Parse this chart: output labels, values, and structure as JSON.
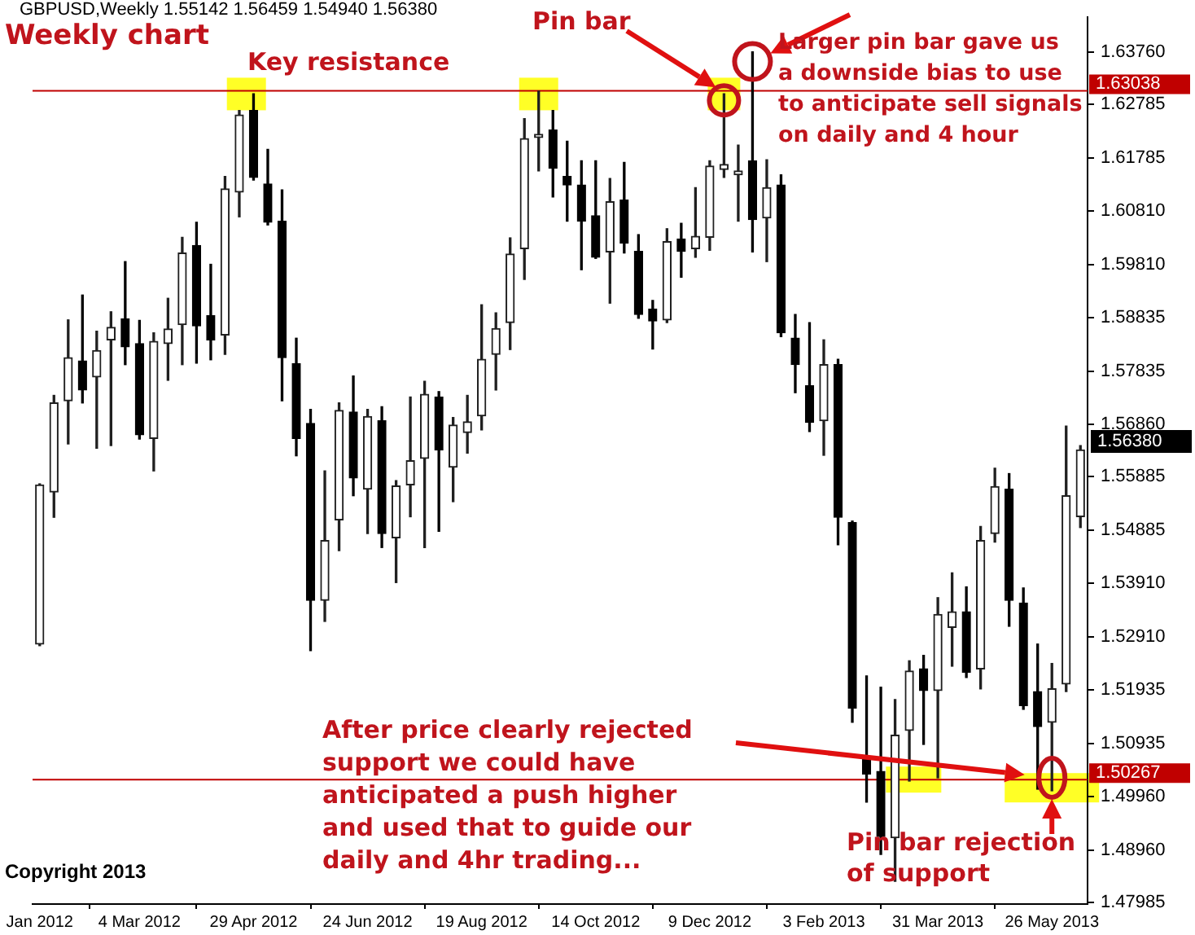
{
  "chart_data": {
    "type": "candlestick",
    "title": "Weekly chart",
    "subtitle": "GBPUSD,Weekly  1.55142 1.56459 1.54940 1.56380",
    "categories": [
      "Jan 2012",
      null,
      null,
      null,
      null,
      null,
      null,
      "4 Mar 2012",
      null,
      null,
      null,
      null,
      null,
      null,
      null,
      "29 Apr 2012",
      null,
      null,
      null,
      null,
      null,
      null,
      null,
      "24 Jun 2012",
      null,
      null,
      null,
      null,
      null,
      null,
      null,
      "19 Aug 2012",
      null,
      null,
      null,
      null,
      null,
      null,
      null,
      "14 Oct 2012",
      null,
      null,
      null,
      null,
      null,
      null,
      null,
      "9 Dec 2012",
      null,
      null,
      null,
      null,
      null,
      null,
      null,
      "3 Feb 2013",
      null,
      null,
      null,
      null,
      null,
      null,
      null,
      "31 Mar 2013",
      null,
      null,
      null,
      null,
      null,
      null,
      null,
      "26 May 2013",
      null,
      null
    ],
    "ohlc": [
      [
        1.5278,
        1.5575,
        1.5275,
        1.5573
      ],
      [
        1.556,
        1.5739,
        1.5513,
        1.5725
      ],
      [
        1.5729,
        1.5879,
        1.5649,
        1.5809
      ],
      [
        1.5803,
        1.5925,
        1.5725,
        1.5749
      ],
      [
        1.5773,
        1.5858,
        1.5641,
        1.5822
      ],
      [
        1.5842,
        1.5894,
        1.5646,
        1.5865
      ],
      [
        1.5881,
        1.5987,
        1.5796,
        1.5829
      ],
      [
        1.5835,
        1.5878,
        1.5658,
        1.5666
      ],
      [
        1.5659,
        1.5855,
        1.5599,
        1.5839
      ],
      [
        1.5835,
        1.5919,
        1.5767,
        1.5862
      ],
      [
        1.587,
        1.6032,
        1.5796,
        1.6003
      ],
      [
        1.6017,
        1.606,
        1.5799,
        1.5868
      ],
      [
        1.5887,
        1.5982,
        1.5805,
        1.5842
      ],
      [
        1.5851,
        1.6145,
        1.5815,
        1.6122
      ],
      [
        1.6116,
        1.6267,
        1.607,
        1.6259
      ],
      [
        1.6267,
        1.6298,
        1.6138,
        1.6143
      ],
      [
        1.6131,
        1.6195,
        1.6055,
        1.606
      ],
      [
        1.6062,
        1.612,
        1.5729,
        1.5809
      ],
      [
        1.5798,
        1.5845,
        1.5627,
        1.5659
      ],
      [
        1.5687,
        1.5713,
        1.5266,
        1.5359
      ],
      [
        1.5359,
        1.5599,
        1.532,
        1.547
      ],
      [
        1.5508,
        1.5725,
        1.5451,
        1.5711
      ],
      [
        1.5708,
        1.5775,
        1.5553,
        1.5586
      ],
      [
        1.5565,
        1.5713,
        1.5483,
        1.57
      ],
      [
        1.5692,
        1.5718,
        1.5457,
        1.5483
      ],
      [
        1.5475,
        1.5581,
        1.5392,
        1.5571
      ],
      [
        1.5573,
        1.5736,
        1.5514,
        1.5618
      ],
      [
        1.5622,
        1.5765,
        1.5457,
        1.5741
      ],
      [
        1.5736,
        1.5746,
        1.5487,
        1.5638
      ],
      [
        1.5606,
        1.5698,
        1.5542,
        1.5684
      ],
      [
        1.567,
        1.5739,
        1.5632,
        1.569
      ],
      [
        1.5701,
        1.5907,
        1.5675,
        1.5806
      ],
      [
        1.5815,
        1.5892,
        1.5749,
        1.5863
      ],
      [
        1.5874,
        1.6031,
        1.5824,
        1.6001
      ],
      [
        1.6011,
        1.6252,
        1.5954,
        1.6215
      ],
      [
        1.6217,
        1.6303,
        1.6155,
        1.6223
      ],
      [
        1.6231,
        1.6267,
        1.6107,
        1.616
      ],
      [
        1.6145,
        1.621,
        1.6062,
        1.6129
      ],
      [
        1.6129,
        1.6174,
        1.5972,
        1.6062
      ],
      [
        1.6072,
        1.6174,
        1.5993,
        1.5995
      ],
      [
        1.6005,
        1.6141,
        1.591,
        1.6098
      ],
      [
        1.6101,
        1.6171,
        1.6003,
        1.6021
      ],
      [
        1.6006,
        1.6037,
        1.5882,
        1.5889
      ],
      [
        1.5899,
        1.5915,
        1.5825,
        1.5877
      ],
      [
        1.5879,
        1.6048,
        1.5874,
        1.6024
      ],
      [
        1.6029,
        1.6058,
        1.5958,
        1.6006
      ],
      [
        1.6011,
        1.6124,
        1.5995,
        1.6034
      ],
      [
        1.6032,
        1.6174,
        1.6008,
        1.6164
      ],
      [
        1.6158,
        1.6298,
        1.6143,
        1.6167
      ],
      [
        1.6148,
        1.6203,
        1.6062,
        1.6155
      ],
      [
        1.6174,
        1.6376,
        1.6005,
        1.6065
      ],
      [
        1.6068,
        1.6176,
        1.5987,
        1.6124
      ],
      [
        1.6129,
        1.6148,
        1.5848,
        1.5855
      ],
      [
        1.5845,
        1.5889,
        1.5744,
        1.5796
      ],
      [
        1.5757,
        1.5874,
        1.5672,
        1.5689
      ],
      [
        1.5692,
        1.5842,
        1.5628,
        1.5796
      ],
      [
        1.5796,
        1.5806,
        1.5462,
        1.5513
      ],
      [
        1.5503,
        1.5506,
        1.5133,
        1.5159
      ],
      [
        1.5068,
        1.5219,
        1.4985,
        1.5037
      ],
      [
        1.5042,
        1.5198,
        1.4888,
        1.4921
      ],
      [
        1.4919,
        1.5175,
        1.4838,
        1.5109
      ],
      [
        1.5118,
        1.5247,
        1.5024,
        1.5228
      ],
      [
        1.5232,
        1.5257,
        1.5092,
        1.5192
      ],
      [
        1.5192,
        1.5364,
        1.503,
        1.5333
      ],
      [
        1.5309,
        1.541,
        1.5237,
        1.5338
      ],
      [
        1.5338,
        1.5384,
        1.5216,
        1.5226
      ],
      [
        1.5232,
        1.5496,
        1.5195,
        1.547
      ],
      [
        1.5483,
        1.5604,
        1.5467,
        1.557
      ],
      [
        1.5565,
        1.5594,
        1.5311,
        1.5359
      ],
      [
        1.5354,
        1.5382,
        1.5157,
        1.5164
      ],
      [
        1.519,
        1.5278,
        1.5009,
        1.5125
      ],
      [
        1.5133,
        1.5242,
        1.5006,
        1.5195
      ],
      [
        1.5204,
        1.5682,
        1.519,
        1.5553
      ],
      [
        1.55142,
        1.56459,
        1.5494,
        1.5638
      ]
    ],
    "ylim": [
      1.4796,
      1.644
    ],
    "yticks": [
      {
        "value": 1.6376,
        "label": "1.63760"
      },
      {
        "value": 1.62785,
        "label": "1.62785"
      },
      {
        "value": 1.61785,
        "label": "1.61785"
      },
      {
        "value": 1.6081,
        "label": "1.60810"
      },
      {
        "value": 1.5981,
        "label": "1.59810"
      },
      {
        "value": 1.58835,
        "label": "1.58835"
      },
      {
        "value": 1.57835,
        "label": "1.57835"
      },
      {
        "value": 1.5686,
        "label": "1.56860"
      },
      {
        "value": 1.55885,
        "label": "1.55885"
      },
      {
        "value": 1.54885,
        "label": "1.54885"
      },
      {
        "value": 1.5391,
        "label": "1.53910"
      },
      {
        "value": 1.5291,
        "label": "1.52910"
      },
      {
        "value": 1.51935,
        "label": "1.51935"
      },
      {
        "value": 1.50935,
        "label": "1.50935"
      },
      {
        "value": 1.4996,
        "label": "1.49960"
      },
      {
        "value": 1.4896,
        "label": "1.48960"
      },
      {
        "value": 1.47985,
        "label": "1.47985"
      }
    ],
    "ref_lines": [
      {
        "axis": "y",
        "value": 1.63038,
        "label": "1.63038",
        "color": "#c00000"
      },
      {
        "axis": "y",
        "value": 1.50267,
        "label": "1.50267",
        "color": "#c00000"
      }
    ],
    "annotations": [
      "Key resistance",
      "Pin bar",
      "Larger pin bar gave us\na downside bias to use\nto anticipate sell signals\non daily and 4 hour",
      "After price clearly rejected\nsupport we could have\nanticipated a push higher\nand used that to guide our\ndaily and 4hr trading...",
      "Pin bar rejection\nof support",
      "Copyright 2013",
      "1.56380"
    ]
  }
}
